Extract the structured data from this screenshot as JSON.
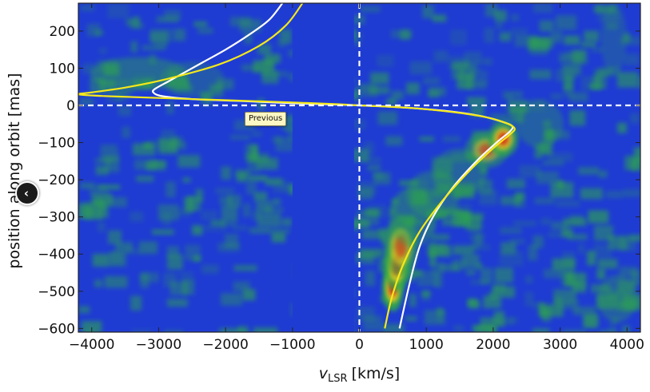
{
  "viewer": {
    "previous_tooltip": "Previous",
    "previous_icon": "chevron-left-icon",
    "previous_glyph": "‹"
  },
  "colors": {
    "background": "#1f3cd2",
    "noise_green": "#2ea84a",
    "emission_high": "#d8141a",
    "emission_mid": "#f2d21e",
    "model_curve_white": "#ffffff",
    "model_curve_yellow": "#f5e81a",
    "reference_lines": "#ffffff"
  },
  "chart_data": {
    "type": "heatmap",
    "title": "",
    "xlabel_main": "v",
    "xlabel_sub": "LSR",
    "xlabel_unit": "[km/s]",
    "ylabel": "position along orbit [mas]",
    "xlim": [
      -4200,
      4200
    ],
    "ylim": [
      -610,
      275
    ],
    "xticks": [
      -4000,
      -3000,
      -2000,
      -1000,
      0,
      1000,
      2000,
      3000,
      4000
    ],
    "xtick_labels": [
      "−4000",
      "−3000",
      "−2000",
      "−1000",
      "0",
      "1000",
      "2000",
      "3000",
      "4000"
    ],
    "yticks": [
      200,
      100,
      0,
      -100,
      -200,
      -300,
      -400,
      -500,
      -600
    ],
    "ytick_labels": [
      "200",
      "100",
      "0",
      "−100",
      "−200",
      "−300",
      "−400",
      "−500",
      "−600"
    ],
    "reference_lines": {
      "x": 0,
      "y": 0,
      "style": "dashed"
    },
    "blank_band_x": [
      -1000,
      -80
    ],
    "emission_blobs": [
      {
        "v": 500,
        "p": -490,
        "sv": 100,
        "sp": 40,
        "a": 1.0
      },
      {
        "v": 560,
        "p": -430,
        "sv": 120,
        "sp": 45,
        "a": 0.85
      },
      {
        "v": 620,
        "p": -380,
        "sv": 160,
        "sp": 50,
        "a": 0.6
      },
      {
        "v": 800,
        "p": -300,
        "sv": 220,
        "sp": 50,
        "a": 0.45
      },
      {
        "v": 1100,
        "p": -240,
        "sv": 250,
        "sp": 40,
        "a": 0.4
      },
      {
        "v": 1500,
        "p": -180,
        "sv": 260,
        "sp": 40,
        "a": 0.4
      },
      {
        "v": 1900,
        "p": -120,
        "sv": 200,
        "sp": 30,
        "a": 0.55
      },
      {
        "v": 2150,
        "p": -90,
        "sv": 140,
        "sp": 30,
        "a": 0.85
      },
      {
        "v": 2700,
        "p": -50,
        "sv": 220,
        "sp": 40,
        "a": 0.35
      },
      {
        "v": -3300,
        "p": 85,
        "sv": 450,
        "sp": 28,
        "a": 0.45
      },
      {
        "v": -2500,
        "p": 70,
        "sv": 300,
        "sp": 30,
        "a": 0.3
      },
      {
        "v": 3850,
        "p": -520,
        "sv": 180,
        "sp": 40,
        "a": 0.35
      },
      {
        "v": 3800,
        "p": 180,
        "sv": 120,
        "sp": 60,
        "a": 0.25
      }
    ],
    "series": [
      {
        "color": "white",
        "x": [
          -1150,
          -1350,
          -1650,
          -2000,
          -2350,
          -2650,
          -2850,
          -3050,
          -3080,
          -2950,
          -2500,
          -1800,
          -1000,
          -300,
          0,
          600,
          1300,
          1800,
          2100,
          2280,
          2250,
          2050,
          1750,
          1400,
          1100,
          900,
          750,
          600
        ],
        "y": [
          275,
          230,
          190,
          150,
          115,
          85,
          65,
          45,
          35,
          25,
          17,
          12,
          6,
          2,
          0,
          -5,
          -15,
          -28,
          -42,
          -55,
          -70,
          -100,
          -150,
          -220,
          -300,
          -380,
          -480,
          -600
        ]
      },
      {
        "color": "yellow",
        "x": [
          -850,
          -1100,
          -1500,
          -2100,
          -2900,
          -3500,
          -4000,
          -4200,
          -3800,
          -3000,
          -2000,
          -1000,
          -300,
          0,
          700,
          1400,
          1900,
          2200,
          2320,
          2250,
          2000,
          1650,
          1250,
          900,
          650,
          480,
          380
        ],
        "y": [
          275,
          215,
          160,
          110,
          70,
          48,
          35,
          30,
          25,
          20,
          14,
          8,
          3,
          0,
          -6,
          -18,
          -32,
          -48,
          -62,
          -78,
          -115,
          -175,
          -255,
          -340,
          -430,
          -520,
          -600
        ]
      }
    ]
  }
}
